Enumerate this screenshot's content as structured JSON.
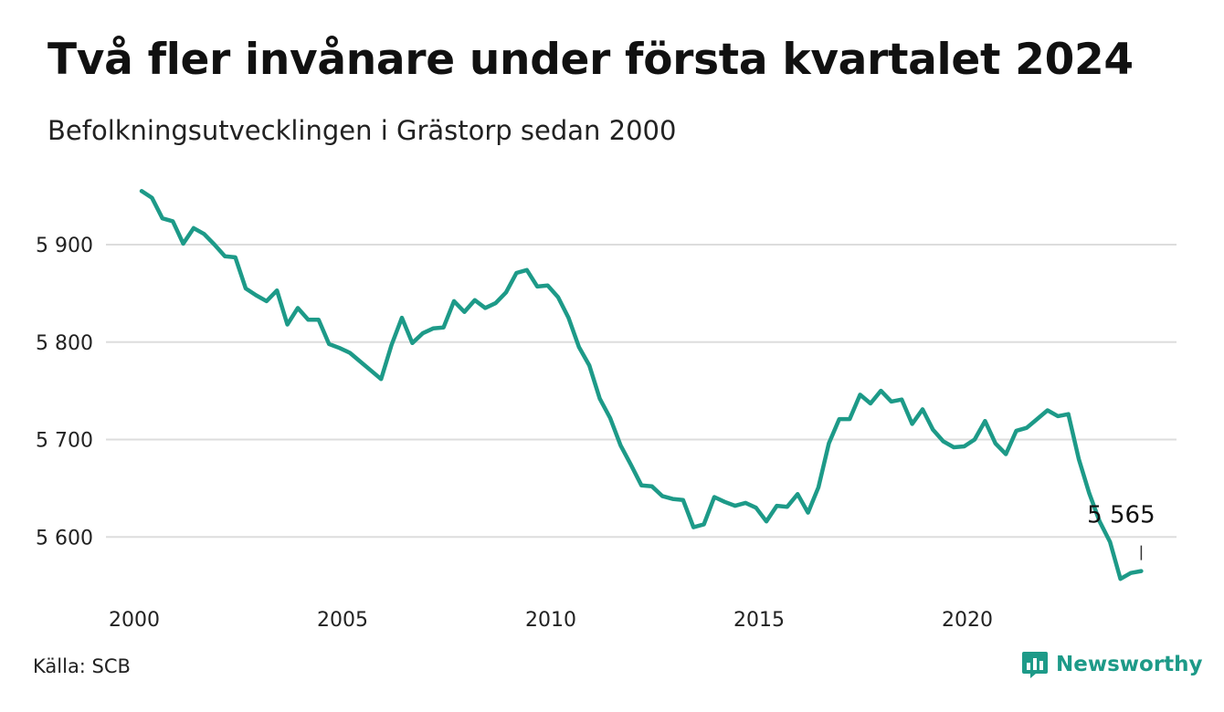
{
  "title": "Två fler invånare under första kvartalet 2024",
  "subtitle": "Befolkningsutvecklingen i Grästorp sedan 2000",
  "source": "Källa: SCB",
  "brand": "Newsworthy",
  "colors": {
    "line": "#1d9a88",
    "grid": "#dddddd",
    "brand": "#1d9a88"
  },
  "chart_data": {
    "type": "line",
    "title": "Två fler invånare under första kvartalet 2024",
    "subtitle": "Befolkningsutvecklingen i Grästorp sedan 2000",
    "xlabel": "",
    "ylabel": "",
    "x_ticks": [
      2000,
      2005,
      2010,
      2015,
      2020
    ],
    "y_ticks": [
      5600,
      5700,
      5800,
      5900
    ],
    "y_tick_labels": [
      "5 600",
      "5 700",
      "5 800",
      "5 900"
    ],
    "xlim": [
      2000,
      2025
    ],
    "ylim": [
      5550,
      5960
    ],
    "grid": "horizontal",
    "end_label": "5 565",
    "series": [
      {
        "x": [
          2000.0,
          2000.25,
          2000.5,
          2000.75,
          2001.0,
          2001.25,
          2001.5,
          2001.75,
          2002.0,
          2002.25,
          2002.5,
          2002.75,
          2003.0,
          2003.25,
          2003.5,
          2003.75,
          2004.0,
          2004.25,
          2004.5,
          2004.75,
          2005.0,
          2005.25,
          2005.5,
          2005.75,
          2006.0,
          2006.25,
          2006.5,
          2006.75,
          2007.0,
          2007.25,
          2007.5,
          2007.75,
          2008.0,
          2008.25,
          2008.5,
          2008.75,
          2009.0,
          2009.25,
          2009.5,
          2009.75,
          2010.0,
          2010.25,
          2010.5,
          2010.75,
          2011.0,
          2011.25,
          2011.5,
          2011.75,
          2012.0,
          2012.25,
          2012.5,
          2012.75,
          2013.0,
          2013.25,
          2013.5,
          2013.75,
          2014.0,
          2014.25,
          2014.5,
          2014.75,
          2015.0,
          2015.25,
          2015.5,
          2015.75,
          2016.0,
          2016.25,
          2016.5,
          2016.75,
          2017.0,
          2017.25,
          2017.5,
          2017.75,
          2018.0,
          2018.25,
          2018.5,
          2018.75,
          2019.0,
          2019.25,
          2019.5,
          2019.75,
          2020.0,
          2020.25,
          2020.5,
          2020.75,
          2021.0,
          2021.25,
          2021.5,
          2021.75,
          2022.0,
          2022.25,
          2022.5,
          2022.75,
          2023.0,
          2023.25,
          2023.5,
          2023.75,
          2024.0
        ],
        "values": [
          5955,
          5948,
          5927,
          5924,
          5901,
          5917,
          5911,
          5900,
          5888,
          5887,
          5855,
          5848,
          5842,
          5853,
          5818,
          5835,
          5823,
          5823,
          5798,
          5794,
          5789,
          5780,
          5771,
          5762,
          5797,
          5825,
          5799,
          5809,
          5814,
          5815,
          5842,
          5831,
          5843,
          5835,
          5840,
          5851,
          5871,
          5874,
          5857,
          5858,
          5846,
          5825,
          5795,
          5776,
          5742,
          5722,
          5694,
          5674,
          5653,
          5652,
          5642,
          5639,
          5638,
          5610,
          5613,
          5641,
          5636,
          5632,
          5635,
          5630,
          5616,
          5632,
          5631,
          5644,
          5625,
          5651,
          5696,
          5721,
          5721,
          5746,
          5737,
          5750,
          5739,
          5741,
          5716,
          5731,
          5710,
          5698,
          5692,
          5693,
          5700,
          5719,
          5696,
          5685,
          5709,
          5712,
          5721,
          5730,
          5724,
          5726,
          5680,
          5645,
          5616,
          5595,
          5557,
          5563,
          5565
        ]
      }
    ]
  }
}
